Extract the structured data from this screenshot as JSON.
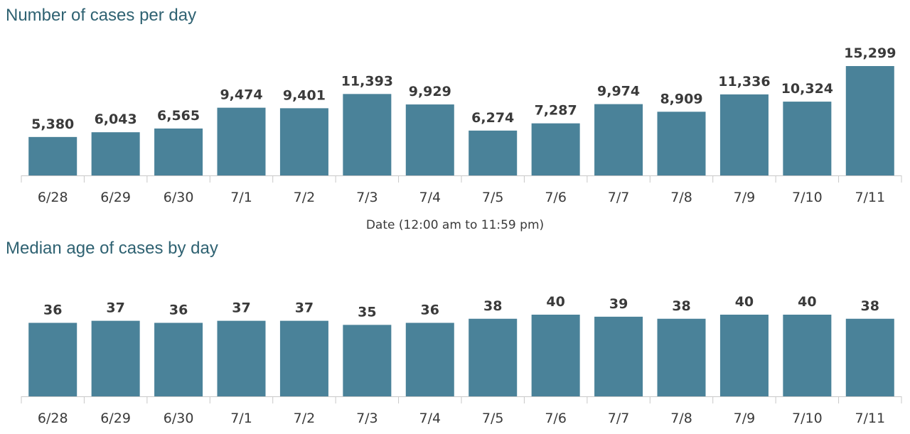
{
  "chart_data": [
    {
      "type": "bar",
      "title": "Number of cases per day",
      "xlabel": "Date (12:00 am to 11:59 pm)",
      "ylabel": "",
      "categories": [
        "6/28",
        "6/29",
        "6/30",
        "7/1",
        "7/2",
        "7/3",
        "7/4",
        "7/5",
        "7/6",
        "7/7",
        "7/8",
        "7/9",
        "7/10",
        "7/11"
      ],
      "values": [
        5380,
        6043,
        6565,
        9474,
        9401,
        11393,
        9929,
        6274,
        7287,
        9974,
        8909,
        11336,
        10324,
        15299
      ],
      "data_labels": [
        "5,380",
        "6,043",
        "6,565",
        "9,474",
        "9,401",
        "11,393",
        "9,929",
        "6,274",
        "7,287",
        "9,974",
        "8,909",
        "11,336",
        "10,324",
        "15,299"
      ],
      "ylim": [
        0,
        15299
      ],
      "grid": false,
      "legend": "none",
      "bar_color": "#4a8299"
    },
    {
      "type": "bar",
      "title": "Median age of cases by day",
      "xlabel": "",
      "ylabel": "",
      "categories": [
        "6/28",
        "6/29",
        "6/30",
        "7/1",
        "7/2",
        "7/3",
        "7/4",
        "7/5",
        "7/6",
        "7/7",
        "7/8",
        "7/9",
        "7/10",
        "7/11"
      ],
      "values": [
        36,
        37,
        36,
        37,
        37,
        35,
        36,
        38,
        40,
        39,
        38,
        40,
        40,
        38
      ],
      "data_labels": [
        "36",
        "37",
        "36",
        "37",
        "37",
        "35",
        "36",
        "38",
        "40",
        "39",
        "38",
        "40",
        "40",
        "38"
      ],
      "ylim": [
        0,
        40
      ],
      "grid": false,
      "legend": "none",
      "bar_color": "#4a8299"
    }
  ]
}
